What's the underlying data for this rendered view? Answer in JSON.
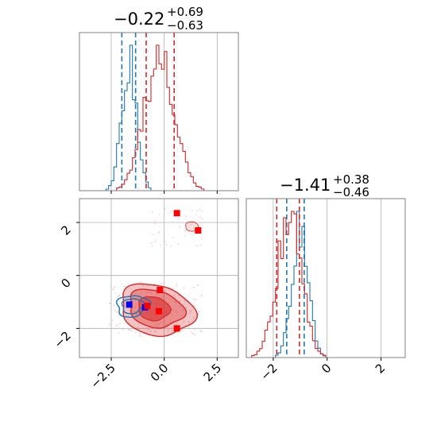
{
  "figure": {
    "colors": {
      "series_a": "#1f77b4",
      "series_b": "#d62728",
      "marker_a": "#0000ff",
      "marker_b": "#ff0000",
      "grid": "#b0b0b0"
    },
    "titles": {
      "param1": {
        "value": "−0.22",
        "plus": "+0.69",
        "minus": "−0.63"
      },
      "param2": {
        "value": "−1.41",
        "plus": "+0.38",
        "minus": "−0.46"
      }
    }
  },
  "chart_data": [
    {
      "type": "histogram",
      "panel": "marginal-param1",
      "xlim": [
        -4.0,
        3.5
      ],
      "grid": true,
      "series": [
        {
          "color": "#1f77b4",
          "peak": -1.65,
          "width": 0.35,
          "quantile_lines": [
            -2.0,
            -1.35
          ]
        },
        {
          "color": "#d62728",
          "peak": -0.22,
          "width": 0.7,
          "quantile_lines": [
            -0.85,
            0.47
          ]
        }
      ]
    },
    {
      "type": "histogram",
      "panel": "marginal-param2",
      "xlim": [
        -3.0,
        2.9
      ],
      "grid": true,
      "xticks": [
        "−2",
        "0",
        "2"
      ],
      "series": [
        {
          "color": "#1f77b4",
          "peak": -1.0,
          "width": 0.3,
          "quantile_lines": [
            -1.5,
            -0.85
          ]
        },
        {
          "color": "#d62728",
          "peak": -1.41,
          "width": 0.45,
          "quantile_lines": [
            -1.87,
            -1.03
          ]
        }
      ]
    },
    {
      "type": "scatter",
      "panel": "joint-param1-param2",
      "xlim": [
        -4.0,
        3.5
      ],
      "ylim": [
        -3.1,
        2.9
      ],
      "grid": true,
      "xticks": [
        "−2.5",
        "0.0",
        "2.5"
      ],
      "yticks": [
        "−2",
        "0",
        "2"
      ],
      "markers": [
        {
          "x": -1.65,
          "y": -1.1,
          "color": "#0000ff"
        },
        {
          "x": -0.9,
          "y": -1.2,
          "color": "#0000ff"
        },
        {
          "x": 0.6,
          "y": 2.35,
          "color": "#ff0000"
        },
        {
          "x": 1.6,
          "y": 1.7,
          "color": "#ff0000"
        },
        {
          "x": -0.2,
          "y": -0.55,
          "color": "#ff0000"
        },
        {
          "x": -0.8,
          "y": -1.15,
          "color": "#ff0000"
        },
        {
          "x": -0.25,
          "y": -1.35,
          "color": "#ff0000"
        },
        {
          "x": 0.6,
          "y": -2.0,
          "color": "#ff0000"
        }
      ]
    }
  ]
}
